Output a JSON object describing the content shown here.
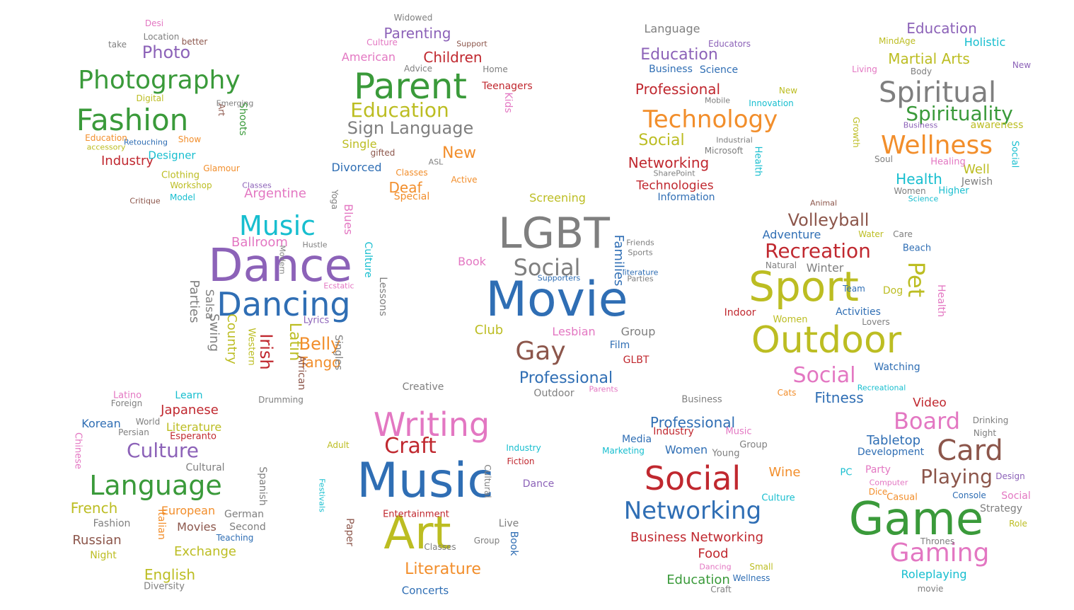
{
  "palette": {
    "blue": "#2f6eb4",
    "orange": "#f28e2b",
    "green": "#3a9a3a",
    "red": "#c0282f",
    "purple": "#8c62b8",
    "brown": "#8c564b",
    "pink": "#e377c2",
    "gray": "#7f7f7f",
    "olive": "#bcbd22",
    "teal": "#17becf"
  },
  "clouds": [
    {
      "id": "photography-fashion",
      "words": [
        {
          "text": "Photography",
          "color": "green"
        },
        {
          "text": "Fashion",
          "color": "green"
        },
        {
          "text": "Photo",
          "color": "purple"
        },
        {
          "text": "Industry",
          "color": "red"
        },
        {
          "text": "Designer",
          "color": "teal"
        },
        {
          "text": "Location",
          "color": "gray"
        },
        {
          "text": "Shoots",
          "color": "green"
        },
        {
          "text": "Glamour",
          "color": "orange"
        },
        {
          "text": "Clothing",
          "color": "olive"
        },
        {
          "text": "Workshop",
          "color": "olive"
        },
        {
          "text": "Critique",
          "color": "brown"
        },
        {
          "text": "Model",
          "color": "teal"
        },
        {
          "text": "Retouching",
          "color": "blue"
        },
        {
          "text": "Digital",
          "color": "olive"
        },
        {
          "text": "Show",
          "color": "orange"
        },
        {
          "text": "Art",
          "color": "brown"
        },
        {
          "text": "Emerging",
          "color": "gray"
        },
        {
          "text": "Education",
          "color": "orange"
        },
        {
          "text": "accessory",
          "color": "olive"
        },
        {
          "text": "better",
          "color": "brown"
        },
        {
          "text": "Desi",
          "color": "pink"
        },
        {
          "text": "take",
          "color": "gray"
        }
      ]
    },
    {
      "id": "parenting",
      "words": [
        {
          "text": "Parent",
          "color": "green"
        },
        {
          "text": "Parenting",
          "color": "purple"
        },
        {
          "text": "Children",
          "color": "red"
        },
        {
          "text": "American",
          "color": "pink"
        },
        {
          "text": "Education",
          "color": "olive"
        },
        {
          "text": "Sign Language",
          "color": "gray"
        },
        {
          "text": "Single",
          "color": "olive"
        },
        {
          "text": "Divorced",
          "color": "blue"
        },
        {
          "text": "Deaf",
          "color": "orange"
        },
        {
          "text": "Special",
          "color": "orange"
        },
        {
          "text": "Teenagers",
          "color": "red"
        },
        {
          "text": "Kids",
          "color": "pink"
        },
        {
          "text": "gifted",
          "color": "brown"
        },
        {
          "text": "Widowed",
          "color": "gray"
        },
        {
          "text": "Support",
          "color": "brown"
        },
        {
          "text": "Home",
          "color": "gray"
        },
        {
          "text": "Advice",
          "color": "gray"
        },
        {
          "text": "Culture",
          "color": "pink"
        },
        {
          "text": "Classes",
          "color": "orange"
        },
        {
          "text": "Active",
          "color": "orange"
        },
        {
          "text": "New",
          "color": "orange"
        },
        {
          "text": "ASL",
          "color": "gray"
        }
      ]
    },
    {
      "id": "technology",
      "words": [
        {
          "text": "Technology",
          "color": "orange"
        },
        {
          "text": "Education",
          "color": "purple"
        },
        {
          "text": "Professional",
          "color": "red"
        },
        {
          "text": "Networking",
          "color": "red"
        },
        {
          "text": "Social",
          "color": "olive"
        },
        {
          "text": "Technologies",
          "color": "red"
        },
        {
          "text": "Language",
          "color": "gray"
        },
        {
          "text": "Business",
          "color": "blue"
        },
        {
          "text": "Science",
          "color": "blue"
        },
        {
          "text": "Information",
          "color": "blue"
        },
        {
          "text": "Educators",
          "color": "purple"
        },
        {
          "text": "Microsoft",
          "color": "gray"
        },
        {
          "text": "Innovation",
          "color": "teal"
        },
        {
          "text": "Mobile",
          "color": "gray"
        },
        {
          "text": "Industrial",
          "color": "gray"
        },
        {
          "text": "SharePoint",
          "color": "gray"
        },
        {
          "text": "New",
          "color": "olive"
        },
        {
          "text": "Health",
          "color": "teal"
        }
      ]
    },
    {
      "id": "spirituality",
      "words": [
        {
          "text": "Spiritual",
          "color": "gray"
        },
        {
          "text": "Spirituality",
          "color": "green"
        },
        {
          "text": "Wellness",
          "color": "orange"
        },
        {
          "text": "Martial Arts",
          "color": "olive"
        },
        {
          "text": "Education",
          "color": "purple"
        },
        {
          "text": "Holistic",
          "color": "teal"
        },
        {
          "text": "Health",
          "color": "teal"
        },
        {
          "text": "Jewish",
          "color": "gray"
        },
        {
          "text": "Well",
          "color": "olive"
        },
        {
          "text": "awareness",
          "color": "olive"
        },
        {
          "text": "Business",
          "color": "purple"
        },
        {
          "text": "Healing",
          "color": "pink"
        },
        {
          "text": "Higher",
          "color": "teal"
        },
        {
          "text": "Women",
          "color": "gray"
        },
        {
          "text": "MindAge",
          "color": "olive"
        },
        {
          "text": "Body",
          "color": "gray"
        },
        {
          "text": "Living",
          "color": "pink"
        },
        {
          "text": "Growth",
          "color": "olive"
        },
        {
          "text": "Social",
          "color": "teal"
        },
        {
          "text": "New",
          "color": "purple"
        },
        {
          "text": "Soul",
          "color": "gray"
        },
        {
          "text": "Science",
          "color": "teal"
        }
      ]
    },
    {
      "id": "dance",
      "words": [
        {
          "text": "Dance",
          "color": "purple"
        },
        {
          "text": "Dancing",
          "color": "blue"
        },
        {
          "text": "Music",
          "color": "teal"
        },
        {
          "text": "Ballroom",
          "color": "pink"
        },
        {
          "text": "Argentine",
          "color": "pink"
        },
        {
          "text": "Latin",
          "color": "olive"
        },
        {
          "text": "Irish",
          "color": "red"
        },
        {
          "text": "Belly",
          "color": "orange"
        },
        {
          "text": "Country",
          "color": "olive"
        },
        {
          "text": "Swing",
          "color": "gray"
        },
        {
          "text": "Salsa",
          "color": "gray"
        },
        {
          "text": "Parties",
          "color": "gray"
        },
        {
          "text": "Tango",
          "color": "orange"
        },
        {
          "text": "African",
          "color": "brown"
        },
        {
          "text": "Singles",
          "color": "gray"
        },
        {
          "text": "Lessons",
          "color": "gray"
        },
        {
          "text": "Culture",
          "color": "teal"
        },
        {
          "text": "Blues",
          "color": "pink"
        },
        {
          "text": "Western",
          "color": "olive"
        },
        {
          "text": "Hustle",
          "color": "gray"
        },
        {
          "text": "Ecstatic",
          "color": "pink"
        },
        {
          "text": "Lyrics",
          "color": "purple"
        },
        {
          "text": "Drumming",
          "color": "gray"
        },
        {
          "text": "Modern",
          "color": "gray"
        },
        {
          "text": "Classes",
          "color": "purple"
        },
        {
          "text": "Yoga",
          "color": "gray"
        }
      ]
    },
    {
      "id": "movie",
      "words": [
        {
          "text": "Movie",
          "color": "blue"
        },
        {
          "text": "LGBT",
          "color": "gray"
        },
        {
          "text": "Social",
          "color": "gray"
        },
        {
          "text": "Gay",
          "color": "brown"
        },
        {
          "text": "Families",
          "color": "blue"
        },
        {
          "text": "Lesbian",
          "color": "pink"
        },
        {
          "text": "Professional",
          "color": "blue"
        },
        {
          "text": "Club",
          "color": "olive"
        },
        {
          "text": "Group",
          "color": "gray"
        },
        {
          "text": "Film",
          "color": "blue"
        },
        {
          "text": "GLBT",
          "color": "red"
        },
        {
          "text": "Screening",
          "color": "olive"
        },
        {
          "text": "Outdoor",
          "color": "gray"
        },
        {
          "text": "Book",
          "color": "pink"
        },
        {
          "text": "Parties",
          "color": "gray"
        },
        {
          "text": "Parents",
          "color": "pink"
        },
        {
          "text": "Sports",
          "color": "gray"
        },
        {
          "text": "Friends",
          "color": "gray"
        },
        {
          "text": "Supporters",
          "color": "blue"
        },
        {
          "text": "literature",
          "color": "blue"
        }
      ]
    },
    {
      "id": "sport",
      "words": [
        {
          "text": "Sport",
          "color": "olive"
        },
        {
          "text": "Outdoor",
          "color": "olive"
        },
        {
          "text": "Recreation",
          "color": "red"
        },
        {
          "text": "Volleyball",
          "color": "brown"
        },
        {
          "text": "Pet",
          "color": "olive"
        },
        {
          "text": "Social",
          "color": "pink"
        },
        {
          "text": "Fitness",
          "color": "blue"
        },
        {
          "text": "Adventure",
          "color": "blue"
        },
        {
          "text": "Winter",
          "color": "gray"
        },
        {
          "text": "Activities",
          "color": "blue"
        },
        {
          "text": "Dog",
          "color": "olive"
        },
        {
          "text": "Women",
          "color": "olive"
        },
        {
          "text": "Indoor",
          "color": "red"
        },
        {
          "text": "Lovers",
          "color": "gray"
        },
        {
          "text": "Watching",
          "color": "blue"
        },
        {
          "text": "Health",
          "color": "pink"
        },
        {
          "text": "Beach",
          "color": "blue"
        },
        {
          "text": "Care",
          "color": "gray"
        },
        {
          "text": "Water",
          "color": "olive"
        },
        {
          "text": "Animal",
          "color": "brown"
        },
        {
          "text": "Team",
          "color": "blue"
        },
        {
          "text": "Recreational",
          "color": "teal"
        },
        {
          "text": "Cats",
          "color": "orange"
        },
        {
          "text": "Natural",
          "color": "gray"
        }
      ]
    },
    {
      "id": "language",
      "words": [
        {
          "text": "Language",
          "color": "green"
        },
        {
          "text": "Culture",
          "color": "purple"
        },
        {
          "text": "French",
          "color": "olive"
        },
        {
          "text": "Japanese",
          "color": "red"
        },
        {
          "text": "Korean",
          "color": "blue"
        },
        {
          "text": "Russian",
          "color": "brown"
        },
        {
          "text": "English",
          "color": "olive"
        },
        {
          "text": "Exchange",
          "color": "olive"
        },
        {
          "text": "Movies",
          "color": "brown"
        },
        {
          "text": "Literature",
          "color": "olive"
        },
        {
          "text": "European",
          "color": "orange"
        },
        {
          "text": "Esperanto",
          "color": "red"
        },
        {
          "text": "Italian",
          "color": "orange"
        },
        {
          "text": "German",
          "color": "gray"
        },
        {
          "text": "Second",
          "color": "gray"
        },
        {
          "text": "Spanish",
          "color": "gray"
        },
        {
          "text": "Chinese",
          "color": "pink"
        },
        {
          "text": "Cultural",
          "color": "gray"
        },
        {
          "text": "Persian",
          "color": "gray"
        },
        {
          "text": "World",
          "color": "gray"
        },
        {
          "text": "Learn",
          "color": "teal"
        },
        {
          "text": "Latino",
          "color": "pink"
        },
        {
          "text": "Foreign",
          "color": "gray"
        },
        {
          "text": "Teaching",
          "color": "blue"
        },
        {
          "text": "Night",
          "color": "olive"
        },
        {
          "text": "Fashion",
          "color": "gray"
        },
        {
          "text": "Diversity",
          "color": "gray"
        }
      ]
    },
    {
      "id": "writing-music",
      "words": [
        {
          "text": "Music",
          "color": "blue"
        },
        {
          "text": "Art",
          "color": "olive"
        },
        {
          "text": "Writing",
          "color": "pink"
        },
        {
          "text": "Craft",
          "color": "red"
        },
        {
          "text": "Literature",
          "color": "orange"
        },
        {
          "text": "Creative",
          "color": "gray"
        },
        {
          "text": "Concerts",
          "color": "blue"
        },
        {
          "text": "Entertainment",
          "color": "red"
        },
        {
          "text": "Live",
          "color": "gray"
        },
        {
          "text": "Fiction",
          "color": "red"
        },
        {
          "text": "Dance",
          "color": "purple"
        },
        {
          "text": "Industry",
          "color": "teal"
        },
        {
          "text": "Adult",
          "color": "olive"
        },
        {
          "text": "Paper",
          "color": "brown"
        },
        {
          "text": "Book",
          "color": "blue"
        },
        {
          "text": "Classes",
          "color": "gray"
        },
        {
          "text": "Group",
          "color": "gray"
        },
        {
          "text": "Cultural",
          "color": "gray"
        },
        {
          "text": "Festivals",
          "color": "teal"
        }
      ]
    },
    {
      "id": "social-networking",
      "words": [
        {
          "text": "Social",
          "color": "red"
        },
        {
          "text": "Networking",
          "color": "blue"
        },
        {
          "text": "Business Networking",
          "color": "red"
        },
        {
          "text": "Professional",
          "color": "blue"
        },
        {
          "text": "Industry",
          "color": "red"
        },
        {
          "text": "Women",
          "color": "blue"
        },
        {
          "text": "Wine",
          "color": "orange"
        },
        {
          "text": "Food",
          "color": "red"
        },
        {
          "text": "Education",
          "color": "green"
        },
        {
          "text": "Business",
          "color": "gray"
        },
        {
          "text": "Music",
          "color": "pink"
        },
        {
          "text": "Group",
          "color": "gray"
        },
        {
          "text": "Media",
          "color": "blue"
        },
        {
          "text": "Culture",
          "color": "teal"
        },
        {
          "text": "Young",
          "color": "gray"
        },
        {
          "text": "Dancing",
          "color": "pink"
        },
        {
          "text": "Wellness",
          "color": "blue"
        },
        {
          "text": "Marketing",
          "color": "teal"
        },
        {
          "text": "Small",
          "color": "olive"
        },
        {
          "text": "Craft",
          "color": "gray"
        }
      ]
    },
    {
      "id": "game",
      "words": [
        {
          "text": "Game",
          "color": "green"
        },
        {
          "text": "Card",
          "color": "brown"
        },
        {
          "text": "Board",
          "color": "pink"
        },
        {
          "text": "Playing",
          "color": "brown"
        },
        {
          "text": "Gaming",
          "color": "pink"
        },
        {
          "text": "Tabletop",
          "color": "blue"
        },
        {
          "text": "Roleplaying",
          "color": "teal"
        },
        {
          "text": "Development",
          "color": "blue"
        },
        {
          "text": "Video",
          "color": "red"
        },
        {
          "text": "Party",
          "color": "pink"
        },
        {
          "text": "Strategy",
          "color": "gray"
        },
        {
          "text": "Role",
          "color": "olive"
        },
        {
          "text": "Thrones",
          "color": "gray"
        },
        {
          "text": "Casual",
          "color": "orange"
        },
        {
          "text": "Console",
          "color": "blue"
        },
        {
          "text": "Design",
          "color": "purple"
        },
        {
          "text": "Social",
          "color": "pink"
        },
        {
          "text": "Computer",
          "color": "pink"
        },
        {
          "text": "Dice",
          "color": "orange"
        },
        {
          "text": "Drinking",
          "color": "gray"
        },
        {
          "text": "movie",
          "color": "gray"
        },
        {
          "text": "Night",
          "color": "gray"
        },
        {
          "text": "PC",
          "color": "teal"
        }
      ]
    }
  ]
}
